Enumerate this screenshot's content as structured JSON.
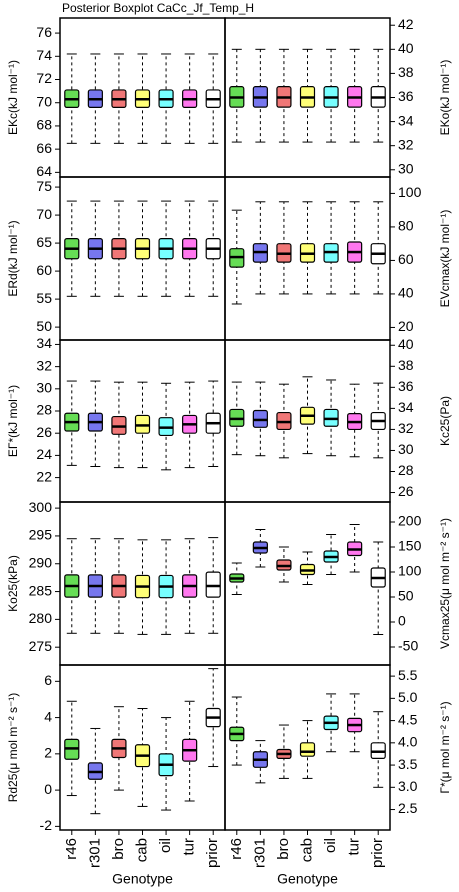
{
  "title": "Posterior Boxplot CaCc_Jf_Temp_H",
  "chart_data": [
    {
      "type": "box",
      "ylabel": "EKc(kJ mol⁻¹)",
      "ylim": [
        63.6,
        77.3
      ],
      "yticks": [
        64,
        66,
        68,
        70,
        72,
        74,
        76
      ],
      "colors": [
        "#66dd55",
        "#7777ee",
        "#f07777",
        "#ffff77",
        "#77ffff",
        "#ff77ee",
        "#ffffff"
      ],
      "values": [
        [
          66.5,
          69.6,
          70.3,
          71.1,
          74.2
        ],
        [
          66.5,
          69.6,
          70.3,
          71.1,
          74.2
        ],
        [
          66.5,
          69.6,
          70.3,
          71.1,
          74.2
        ],
        [
          66.5,
          69.6,
          70.3,
          71.1,
          74.2
        ],
        [
          66.5,
          69.6,
          70.3,
          71.1,
          74.2
        ],
        [
          66.5,
          69.6,
          70.3,
          71.1,
          74.2
        ],
        [
          66.5,
          69.6,
          70.3,
          71.1,
          74.2
        ]
      ]
    },
    {
      "type": "box",
      "ylabel": "EKo(kJ mol⁻¹)",
      "ylim": [
        29.4,
        42.6
      ],
      "yticks": [
        30,
        32,
        34,
        36,
        38,
        40,
        42
      ],
      "colors": [
        "#66dd55",
        "#7777ee",
        "#f07777",
        "#ffff77",
        "#77ffff",
        "#ff77ee",
        "#ffffff"
      ],
      "values": [
        [
          32.3,
          35.2,
          36,
          36.9,
          40
        ],
        [
          32.3,
          35.2,
          36,
          36.9,
          40
        ],
        [
          32.3,
          35.2,
          36,
          36.9,
          40
        ],
        [
          32.3,
          35.2,
          36,
          36.9,
          40
        ],
        [
          32.3,
          35.2,
          36,
          36.9,
          40
        ],
        [
          32.3,
          35.2,
          36,
          36.9,
          40
        ],
        [
          32.3,
          35.2,
          36,
          36.9,
          40
        ]
      ]
    },
    {
      "type": "box",
      "ylabel": "ERd(kJ mol⁻¹)",
      "ylim": [
        47.7,
        76.8
      ],
      "yticks": [
        50,
        55,
        60,
        65,
        70,
        75
      ],
      "colors": [
        "#66dd55",
        "#7777ee",
        "#f07777",
        "#ffff77",
        "#77ffff",
        "#ff77ee",
        "#ffffff"
      ],
      "values": [
        [
          55.5,
          62.2,
          64,
          65.8,
          72.5
        ],
        [
          55.5,
          62.2,
          64,
          65.8,
          72.5
        ],
        [
          55.5,
          62.2,
          64,
          65.8,
          72.5
        ],
        [
          55.5,
          62.2,
          64,
          65.8,
          72.5
        ],
        [
          55.5,
          62.2,
          64,
          65.8,
          72.5
        ],
        [
          55.5,
          62.2,
          64,
          65.8,
          72.5
        ],
        [
          55.5,
          62.2,
          64,
          65.8,
          72.5
        ]
      ]
    },
    {
      "type": "box",
      "ylabel": "EVcmax(kJ mol⁻¹)",
      "ylim": [
        12.5,
        109.8
      ],
      "yticks": [
        20,
        40,
        60,
        80,
        100
      ],
      "colors": [
        "#66dd55",
        "#7777ee",
        "#f07777",
        "#ffff77",
        "#77ffff",
        "#ff77ee",
        "#ffffff"
      ],
      "values": [
        [
          34,
          56,
          62,
          67,
          90
        ],
        [
          40,
          59,
          65,
          70,
          95
        ],
        [
          40,
          59,
          64,
          70,
          95
        ],
        [
          40,
          59,
          64,
          70,
          95
        ],
        [
          40,
          59,
          65,
          70,
          95
        ],
        [
          40,
          59,
          65,
          71,
          95
        ],
        [
          40,
          58,
          64,
          70,
          95
        ]
      ]
    },
    {
      "type": "box",
      "ylabel": "EΓ*(kJ mol⁻¹)",
      "ylim": [
        19.8,
        34.4
      ],
      "yticks": [
        22,
        24,
        26,
        28,
        30,
        32,
        34
      ],
      "colors": [
        "#66dd55",
        "#7777ee",
        "#f07777",
        "#ffff77",
        "#77ffff",
        "#ff77ee",
        "#ffffff"
      ],
      "values": [
        [
          23.1,
          26.2,
          27,
          27.8,
          30.7
        ],
        [
          23,
          26.2,
          27,
          27.8,
          30.7
        ],
        [
          22.9,
          25.9,
          26.6,
          27.5,
          30.6
        ],
        [
          22.9,
          26,
          26.7,
          27.6,
          30.6
        ],
        [
          22.7,
          25.8,
          26.5,
          27.4,
          30.5
        ],
        [
          22.9,
          26,
          26.8,
          27.6,
          30.6
        ],
        [
          23,
          26,
          26.9,
          27.8,
          30.7
        ]
      ]
    },
    {
      "type": "box",
      "ylabel": "Kc25(Pa)",
      "ylim": [
        25.1,
        40.5
      ],
      "yticks": [
        26,
        28,
        30,
        32,
        34,
        36,
        38,
        40
      ],
      "colors": [
        "#66dd55",
        "#7777ee",
        "#f07777",
        "#ffff77",
        "#77ffff",
        "#ff77ee",
        "#ffffff"
      ],
      "values": [
        [
          29.6,
          32.3,
          33,
          33.9,
          36.5
        ],
        [
          29.5,
          32.2,
          32.9,
          33.8,
          36.5
        ],
        [
          29.3,
          32,
          32.7,
          33.6,
          36.3
        ],
        [
          29.7,
          32.5,
          33.3,
          34.1,
          37
        ],
        [
          29.5,
          32.3,
          33,
          33.9,
          36.7
        ],
        [
          29.4,
          32,
          32.7,
          33.5,
          36.3
        ],
        [
          29.3,
          32,
          32.8,
          33.6,
          36.4
        ]
      ]
    },
    {
      "type": "box",
      "ylabel": "Ko25(kPa)",
      "ylim": [
        271.8,
        301.1
      ],
      "yticks": [
        275,
        280,
        285,
        290,
        295,
        300
      ],
      "colors": [
        "#66dd55",
        "#7777ee",
        "#f07777",
        "#ffff77",
        "#77ffff",
        "#ff77ee",
        "#ffffff"
      ],
      "values": [
        [
          277.5,
          284,
          286,
          288,
          294.5
        ],
        [
          277.5,
          284,
          286,
          288,
          294.5
        ],
        [
          277.5,
          284,
          286,
          288,
          294.5
        ],
        [
          277.3,
          283.9,
          285.9,
          287.9,
          294.3
        ],
        [
          277.3,
          283.9,
          285.9,
          287.9,
          294.3
        ],
        [
          277.5,
          284,
          286,
          288,
          294.5
        ],
        [
          277.5,
          284,
          286,
          288.5,
          294.7
        ]
      ]
    },
    {
      "type": "box",
      "ylabel": "Vcmax25(μ mol m⁻² s⁻¹)",
      "ylim": [
        -86,
        240
      ],
      "yticks": [
        -50,
        0,
        50,
        100,
        150,
        200
      ],
      "colors": [
        "#66dd55",
        "#7777ee",
        "#f07777",
        "#ffff77",
        "#77ffff",
        "#ff77ee",
        "#ffffff"
      ],
      "values": [
        [
          55,
          80,
          87,
          96,
          118
        ],
        [
          110,
          138,
          148,
          160,
          185
        ],
        [
          80,
          104,
          112,
          124,
          150
        ],
        [
          75,
          95,
          103,
          115,
          140
        ],
        [
          95,
          120,
          130,
          142,
          175
        ],
        [
          100,
          133,
          145,
          160,
          195
        ],
        [
          -25,
          70,
          88,
          108,
          160
        ]
      ]
    },
    {
      "type": "box",
      "ylabel": "Rd25(μ mol m⁻² s⁻¹)",
      "ylim": [
        -2.2,
        6.9
      ],
      "yticks": [
        -2,
        0,
        2,
        4,
        6
      ],
      "xlabel": "Genotype",
      "categories": [
        "r46",
        "r301",
        "bro",
        "cab",
        "oil",
        "tur",
        "prior"
      ],
      "colors": [
        "#66dd55",
        "#7777ee",
        "#f07777",
        "#ffff77",
        "#77ffff",
        "#ff77ee",
        "#ffffff"
      ],
      "values": [
        [
          -0.3,
          1.7,
          2.3,
          2.8,
          4.9
        ],
        [
          -1.3,
          0.6,
          1,
          1.5,
          3.4
        ],
        [
          0,
          1.8,
          2.3,
          2.8,
          4.6
        ],
        [
          -0.9,
          1.3,
          1.9,
          2.5,
          4.5
        ],
        [
          -1.1,
          0.8,
          1.4,
          2,
          4
        ],
        [
          -0.6,
          1.6,
          2.2,
          2.8,
          4.9
        ],
        [
          1.3,
          3.5,
          4,
          4.5,
          6.7
        ]
      ]
    },
    {
      "type": "box",
      "ylabel": "Γ*(μ mol m⁻² s⁻¹)",
      "ylim": [
        2.04,
        5.75
      ],
      "yticks": [
        2.5,
        {
          "value": 3,
          "label": "3.0"
        },
        3.5,
        {
          "value": 4,
          "label": "4.0"
        },
        4.5,
        {
          "value": 5,
          "label": "5.0"
        },
        5.5
      ],
      "xlabel": "Genotype",
      "categories": [
        "r46",
        "r301",
        "bro",
        "cab",
        "oil",
        "tur",
        "prior"
      ],
      "colors": [
        "#66dd55",
        "#7777ee",
        "#f07777",
        "#ffff77",
        "#77ffff",
        "#ff77ee",
        "#ffffff"
      ],
      "values": [
        [
          3.5,
          4.05,
          4.2,
          4.35,
          5.03
        ],
        [
          3.1,
          3.45,
          3.62,
          3.8,
          4.05
        ],
        [
          3.2,
          3.65,
          3.75,
          3.85,
          4.4
        ],
        [
          3.2,
          3.7,
          3.8,
          4,
          4.5
        ],
        [
          3.8,
          4.3,
          4.45,
          4.6,
          5.1
        ],
        [
          3.8,
          4.25,
          4.4,
          4.55,
          5.1
        ],
        [
          3,
          3.65,
          3.8,
          4,
          4.7
        ]
      ]
    }
  ]
}
